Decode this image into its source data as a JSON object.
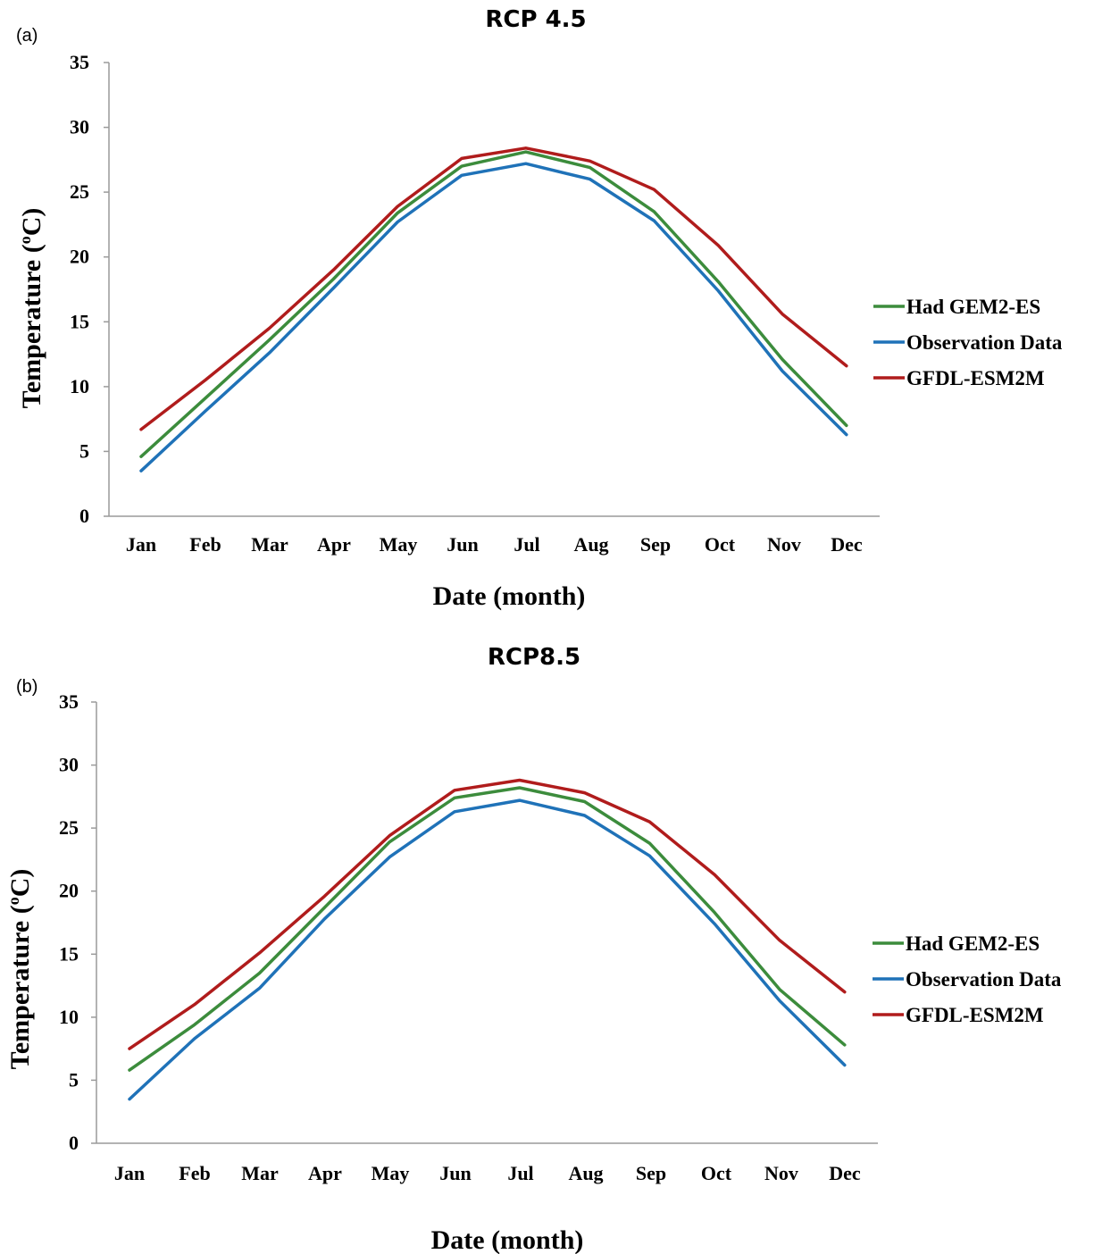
{
  "chart_data": [
    {
      "type": "line",
      "panel_label": "(a)",
      "title": "RCP 4.5",
      "xlabel": "Date (month)",
      "ylabel": "Temperature (°C)",
      "ylabel_parts": {
        "pre": "Temperature (",
        "sup": "o",
        "post": "C)"
      },
      "categories": [
        "Jan",
        "Feb",
        "Mar",
        "Apr",
        "May",
        "Jun",
        "Jul",
        "Aug",
        "Sep",
        "Oct",
        "Nov",
        "Dec"
      ],
      "ylim": [
        0,
        35
      ],
      "yticks": [
        "0",
        "5",
        "10",
        "15",
        "20",
        "25",
        "30",
        "35"
      ],
      "grid": false,
      "legend_position": "right",
      "series": [
        {
          "name": "Had GEM2-ES",
          "color": "#3c8c3c",
          "values": [
            4.6,
            9.1,
            13.6,
            18.3,
            23.4,
            27.0,
            28.1,
            26.9,
            23.5,
            18.1,
            12.1,
            7.0
          ]
        },
        {
          "name": "Observation Data",
          "color": "#1f72b8",
          "values": [
            3.5,
            8.1,
            12.6,
            17.6,
            22.7,
            26.3,
            27.2,
            26.0,
            22.8,
            17.4,
            11.2,
            6.3
          ]
        },
        {
          "name": "GFDL-ESM2M",
          "color": "#b01c1c",
          "values": [
            6.7,
            10.5,
            14.5,
            19.0,
            23.9,
            27.6,
            28.4,
            27.4,
            25.2,
            20.9,
            15.6,
            11.6
          ]
        }
      ]
    },
    {
      "type": "line",
      "panel_label": "(b)",
      "title": "RCP8.5",
      "xlabel": "Date (month)",
      "ylabel": "Temperature (°C)",
      "ylabel_parts": {
        "pre": "Temperature (",
        "sup": "o",
        "post": "C)"
      },
      "categories": [
        "Jan",
        "Feb",
        "Mar",
        "Apr",
        "May",
        "Jun",
        "Jul",
        "Aug",
        "Sep",
        "Oct",
        "Nov",
        "Dec"
      ],
      "ylim": [
        0,
        35
      ],
      "yticks": [
        "0",
        "5",
        "10",
        "15",
        "20",
        "25",
        "30",
        "35"
      ],
      "grid": false,
      "legend_position": "right",
      "series": [
        {
          "name": "Had GEM2-ES",
          "color": "#3c8c3c",
          "values": [
            5.8,
            9.4,
            13.5,
            18.7,
            23.9,
            27.4,
            28.2,
            27.1,
            23.8,
            18.3,
            12.2,
            7.8
          ]
        },
        {
          "name": "Observation Data",
          "color": "#1f72b8",
          "values": [
            3.5,
            8.3,
            12.3,
            17.8,
            22.7,
            26.3,
            27.2,
            26.0,
            22.8,
            17.4,
            11.3,
            6.2
          ]
        },
        {
          "name": "GFDL-ESM2M",
          "color": "#b01c1c",
          "values": [
            7.5,
            11.0,
            15.1,
            19.6,
            24.4,
            28.0,
            28.8,
            27.8,
            25.5,
            21.3,
            16.1,
            12.0
          ]
        }
      ]
    }
  ]
}
